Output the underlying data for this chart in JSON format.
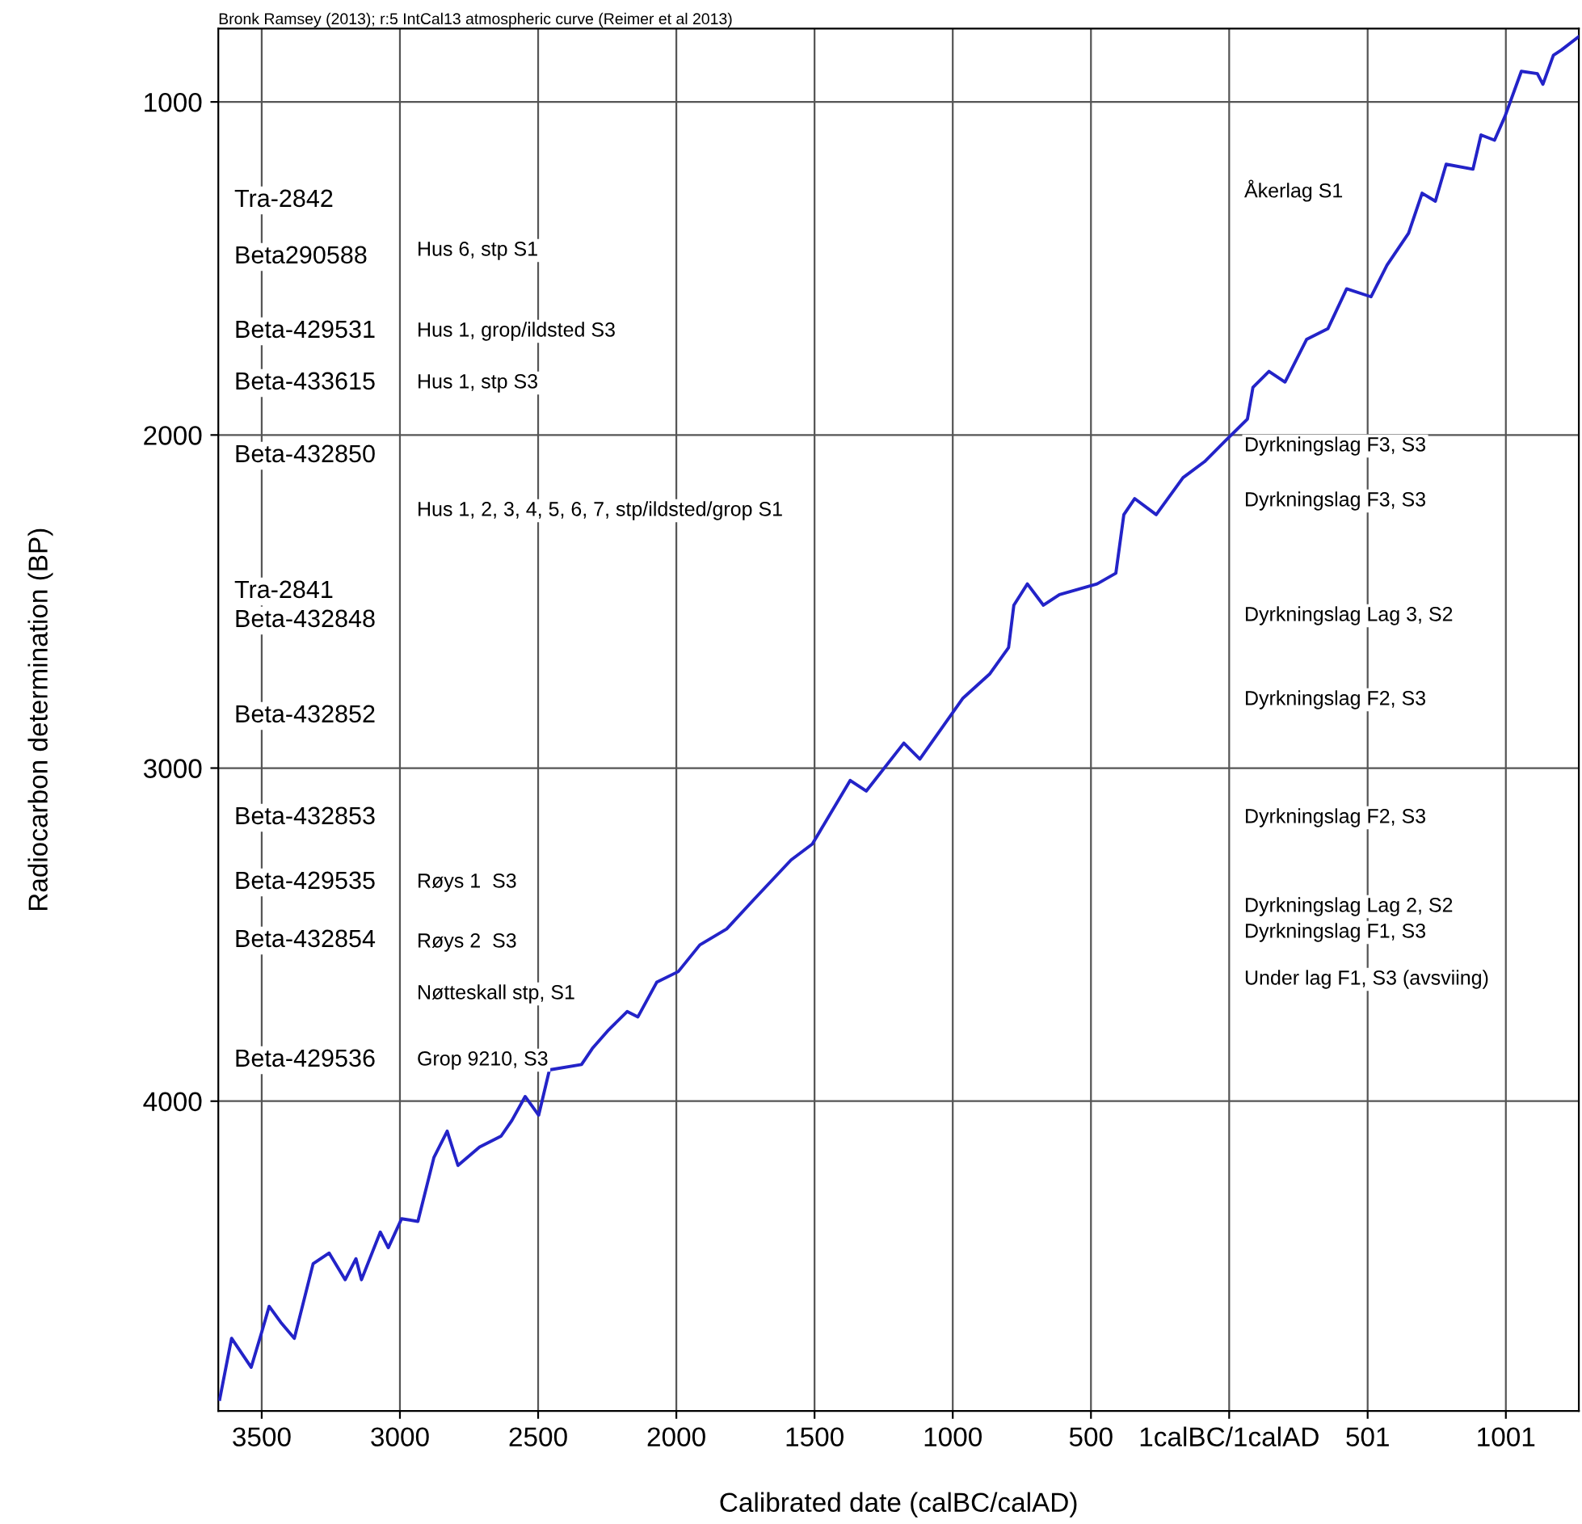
{
  "chart_data": {
    "type": "line",
    "title": "Bronk Ramsey (2013); r:5 IntCal13 atmospheric curve (Reimer et al 2013)",
    "xlabel": "Calibrated date (calBC/calAD)",
    "ylabel": "Radiocarbon determination (BP)",
    "x": [
      -3652,
      -3609,
      -3538,
      -3498,
      -3473,
      -3431,
      -3382,
      -3314,
      -3256,
      -3198,
      -3159,
      -3139,
      -3071,
      -3042,
      -2994,
      -2935,
      -2877,
      -2829,
      -2790,
      -2712,
      -2634,
      -2595,
      -2547,
      -2498,
      -2459,
      -2343,
      -2304,
      -2245,
      -2178,
      -2139,
      -2071,
      -1993,
      -1915,
      -1818,
      -1721,
      -1585,
      -1508,
      -1371,
      -1313,
      -1177,
      -1119,
      -963,
      -867,
      -798,
      -779,
      -730,
      -672,
      -614,
      -478,
      -410,
      -381,
      -342,
      -264,
      -167,
      -89,
      -12,
      66,
      86,
      144,
      202,
      280,
      357,
      425,
      513,
      571,
      649,
      698,
      746,
      785,
      882,
      911,
      960,
      998,
      1057,
      1115,
      1135,
      1173,
      1202,
      1265
    ],
    "series": [
      {
        "color": "#2323c8",
        "values": [
          4895,
          4712,
          4799,
          4688,
          4616,
          4664,
          4712,
          4488,
          4456,
          4536,
          4473,
          4536,
          4393,
          4440,
          4353,
          4361,
          4169,
          4090,
          4193,
          4138,
          4105,
          4058,
          3986,
          4042,
          3906,
          3890,
          3842,
          3786,
          3731,
          3747,
          3643,
          3611,
          3531,
          3483,
          3396,
          3276,
          3228,
          3037,
          3069,
          2925,
          2973,
          2790,
          2718,
          2638,
          2511,
          2447,
          2511,
          2479,
          2447,
          2415,
          2239,
          2191,
          2239,
          2128,
          2080,
          2016,
          1952,
          1857,
          1809,
          1841,
          1713,
          1681,
          1561,
          1585,
          1490,
          1394,
          1274,
          1298,
          1187,
          1202,
          1099,
          1115,
          1043,
          908,
          915,
          947,
          860,
          844,
          804
        ]
      }
    ],
    "xlim": [
      -3657,
      1265
    ],
    "ylim": [
      4930,
      780
    ],
    "xticks": [
      {
        "value": -3500,
        "label": "3500"
      },
      {
        "value": -3000,
        "label": "3000"
      },
      {
        "value": -2500,
        "label": "2500"
      },
      {
        "value": -2000,
        "label": "2000"
      },
      {
        "value": -1500,
        "label": "1500"
      },
      {
        "value": -1000,
        "label": "1000"
      },
      {
        "value": -500,
        "label": "500"
      },
      {
        "value": 0,
        "label": "1calBC/1calAD"
      },
      501,
      1001
    ],
    "yticks": [
      1000,
      2000,
      3000,
      4000
    ],
    "grid": true,
    "line_style": "solid",
    "marker": "none",
    "annotations": [
      "Tra-2842",
      "Beta290588",
      "Beta-429531",
      "Beta-433615",
      "Beta-432850",
      "Tra-2841",
      "Beta-432848",
      "Beta-432852",
      "Beta-432853",
      "Beta-429535",
      "Beta-432854",
      "Beta-429536",
      "Hus 6, stp S1",
      "Hus 1, grop/ildsted S3",
      "Hus 1, stp S3",
      "Hus 1, 2, 3, 4, 5, 6, 7, stp/ildsted/grop S1",
      "Røys 1  S3",
      "Røys 2  S3",
      "Nøtteskall stp, S1",
      "Grop 9210, S3",
      "Åkerlag S1",
      "Dyrkningslag F3, S3",
      "Dyrkningslag F3, S3",
      "Dyrkningslag Lag 3, S2",
      "Dyrkningslag F2, S3",
      "Dyrkningslag F2, S3",
      "Dyrkningslag Lag 2, S2",
      "Dyrkningslag F1, S3",
      "Under lag F1, S3 (avsviing)"
    ]
  }
}
